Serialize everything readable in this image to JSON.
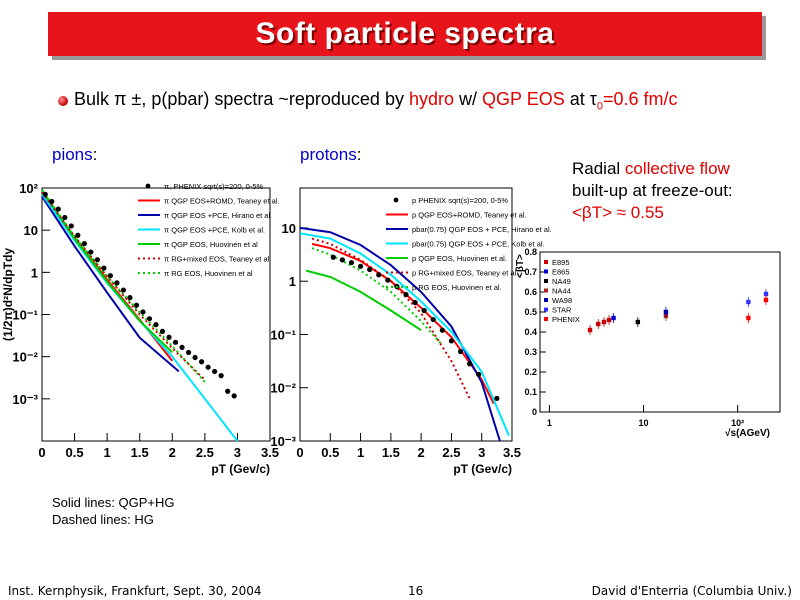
{
  "slide": {
    "title": "Soft particle spectra",
    "headline": {
      "part1": "Bulk π ±, p(pbar) spectra ~reproduced by ",
      "hydro": "hydro",
      "part2": " w/ ",
      "qgp": "QGP EOS",
      "part3": " at τ",
      "sub": "0",
      "part4": "=0.6 fm/c"
    },
    "pions_label": "pions",
    "protons_label": "protons",
    "radial": {
      "line1_a": "Radial ",
      "line1_b": "collective flow",
      "line2": "built-up at freeze-out:",
      "line3": "<βT> ≈  0.55"
    },
    "notes": [
      "Solid lines: QGP+HG",
      "Dashed lines: HG"
    ],
    "footer": {
      "left": "Inst. Kernphysik, Frankfurt, Sept. 30, 2004",
      "page": "16",
      "right": "David d'Enterria (Columbia Univ.)"
    }
  },
  "chart_data": [
    {
      "type": "scatter",
      "panel": "pions",
      "ylabel": "(1/2π)d²N/dpTdy",
      "xlabel": "pT (Gev/c)",
      "x_ticks": [
        "0",
        "0.5",
        "1",
        "1.5",
        "2",
        "2.5",
        "3",
        "3.5"
      ],
      "y_ticks": [
        "10²",
        "10",
        "1",
        "10⁻¹",
        "10⁻²",
        "10⁻³"
      ],
      "xlim": [
        0,
        3.5
      ],
      "ylim_log10": [
        -3,
        3
      ],
      "y_scale": "log",
      "legend": [
        {
          "label": "π, PHENIX sqrt(s)=200, 0-5%",
          "color": "#000000",
          "style": "marker"
        },
        {
          "label": "π QGP EOS+ROMD, Teaney et al.",
          "color": "#ff0000",
          "style": "solid"
        },
        {
          "label": "π QGP EOS +PCE, Hirano et al",
          "color": "#0000aa",
          "style": "solid"
        },
        {
          "label": "π QGP EOS +PCE, Kolb et al.",
          "color": "#00e5ff",
          "style": "solid"
        },
        {
          "label": "π QGP EOS, Huovinen et al",
          "color": "#00cc00",
          "style": "solid"
        },
        {
          "label": "π RG+mixed EOS, Teaney et al",
          "color": "#cc0000",
          "style": "dashed"
        },
        {
          "label": "π RG EOS, Huovinen et al",
          "color": "#00cc00",
          "style": "dashed"
        }
      ],
      "points": {
        "x": [
          0.05,
          0.15,
          0.25,
          0.35,
          0.45,
          0.55,
          0.65,
          0.75,
          0.85,
          0.95,
          1.05,
          1.15,
          1.25,
          1.35,
          1.45,
          1.55,
          1.65,
          1.75,
          1.85,
          1.95,
          2.05,
          2.15,
          2.25,
          2.35,
          2.45,
          2.55,
          2.65,
          2.75,
          2.85,
          2.95
        ],
        "log10_y": [
          2.85,
          2.68,
          2.5,
          2.3,
          2.1,
          1.88,
          1.68,
          1.48,
          1.3,
          1.1,
          0.92,
          0.75,
          0.58,
          0.4,
          0.22,
          0.06,
          -0.1,
          -0.24,
          -0.4,
          -0.54,
          -0.66,
          -0.78,
          -0.9,
          -1.02,
          -1.12,
          -1.25,
          -1.35,
          -1.45,
          -1.82,
          -1.93
        ]
      },
      "curves": [
        {
          "name": "π QGP EOS+ROMD, Teaney et al.",
          "color": "#ff0000",
          "style": "solid",
          "x": [
            0,
            0.5,
            1,
            1.5,
            2
          ],
          "log10_y": [
            2.9,
            1.82,
            0.82,
            -0.12,
            -1.1
          ]
        },
        {
          "name": "π QGP EOS +PCE, Hirano et al",
          "color": "#0000aa",
          "style": "solid",
          "x": [
            0,
            0.5,
            1,
            1.5,
            2.1
          ],
          "log10_y": [
            2.8,
            1.62,
            0.52,
            -0.55,
            -1.35
          ]
        },
        {
          "name": "π QGP EOS +PCE, Kolb et al.",
          "color": "#00e5ff",
          "style": "solid",
          "x": [
            0,
            0.5,
            1,
            1.5,
            2,
            2.5,
            3
          ],
          "log10_y": [
            2.85,
            1.75,
            0.75,
            -0.15,
            -1.0,
            -2.0,
            -3.0
          ]
        },
        {
          "name": "π QGP EOS, Huovinen et al",
          "color": "#00cc00",
          "style": "solid",
          "x": [
            0,
            0.5,
            1,
            1.5,
            2
          ],
          "log10_y": [
            2.95,
            1.8,
            0.78,
            -0.15,
            -0.9
          ]
        },
        {
          "name": "π RG+mixed EOS, Teaney et al",
          "color": "#cc0000",
          "style": "dashed",
          "x": [
            0,
            0.5,
            1,
            1.5,
            2,
            2.5
          ],
          "log10_y": [
            2.9,
            1.85,
            0.9,
            0.0,
            -0.8,
            -1.55
          ]
        },
        {
          "name": "π RG EOS, Huovinen et al",
          "color": "#00cc00",
          "style": "dashed",
          "x": [
            0,
            0.5,
            1,
            1.5,
            2,
            2.5
          ],
          "log10_y": [
            2.95,
            1.85,
            0.9,
            0.05,
            -0.75,
            -1.6
          ]
        }
      ]
    },
    {
      "type": "scatter",
      "panel": "protons",
      "xlabel": "pT (Gev/c)",
      "x_ticks": [
        "0",
        "0.5",
        "1",
        "1.5",
        "2",
        "2.5",
        "3",
        "3.5"
      ],
      "y_ticks": [
        "10",
        "1",
        "10⁻¹",
        "10⁻²",
        "10⁻³"
      ],
      "xlim": [
        0,
        3.5
      ],
      "ylim_log10": [
        -3,
        1.75
      ],
      "y_scale": "log",
      "legend": [
        {
          "label": "p PHENIX sqrt(s)=200, 0-5%",
          "color": "#000000",
          "style": "marker"
        },
        {
          "label": "p QGP EOS+ROMD, Teaney et al.",
          "color": "#ff0000",
          "style": "solid"
        },
        {
          "label": "pbar(0.75) QGP EOS + PCE, Hirano et al.",
          "color": "#0000aa",
          "style": "solid"
        },
        {
          "label": "pbar(0.75) QGP EOS + PCE, Kolb et al.",
          "color": "#00e5ff",
          "style": "solid"
        },
        {
          "label": "p QGP EOS, Huovinen et al.",
          "color": "#00cc00",
          "style": "solid"
        },
        {
          "label": "p RG+mixed EOS, Teaney et al.",
          "color": "#cc0000",
          "style": "dashed"
        },
        {
          "label": "p RG EOS, Huovinen et al.",
          "color": "#00cc00",
          "style": "dashed"
        }
      ],
      "points": {
        "x": [
          0.55,
          0.7,
          0.85,
          1.0,
          1.15,
          1.3,
          1.45,
          1.6,
          1.75,
          1.9,
          2.05,
          2.2,
          2.35,
          2.5,
          2.65,
          2.8,
          2.95,
          3.25
        ],
        "log10_y": [
          0.45,
          0.4,
          0.35,
          0.28,
          0.22,
          0.12,
          0.02,
          -0.1,
          -0.25,
          -0.4,
          -0.55,
          -0.72,
          -0.92,
          -1.12,
          -1.32,
          -1.55,
          -1.75,
          -2.2
        ]
      },
      "curves": [
        {
          "name": "p QGP EOS+ROMD, Teaney et al.",
          "color": "#ff0000",
          "style": "solid",
          "x": [
            0.2,
            0.5,
            1,
            1.5,
            2,
            2.5,
            3,
            3.2
          ],
          "log10_y": [
            0.7,
            0.62,
            0.38,
            0.0,
            -0.5,
            -1.05,
            -1.85,
            -2.3
          ]
        },
        {
          "name": "pbar(0.75) QGP EOS + PCE, Hirano et al.",
          "color": "#0000aa",
          "style": "solid",
          "x": [
            0,
            0.5,
            1,
            1.5,
            2,
            2.5,
            3,
            3.3
          ],
          "log10_y": [
            1.0,
            0.92,
            0.68,
            0.3,
            -0.2,
            -0.85,
            -1.9,
            -3.0
          ]
        },
        {
          "name": "pbar(0.75) QGP EOS + PCE, Kolb et al.",
          "color": "#00e5ff",
          "style": "solid",
          "x": [
            0,
            0.5,
            1,
            1.5,
            2,
            2.5,
            3,
            3.45
          ],
          "log10_y": [
            0.9,
            0.8,
            0.52,
            0.12,
            -0.38,
            -0.95,
            -1.7,
            -2.9
          ]
        },
        {
          "name": "p QGP EOS, Huovinen et al.",
          "color": "#00cc00",
          "style": "solid",
          "x": [
            0.1,
            0.5,
            1,
            1.5,
            2
          ],
          "log10_y": [
            0.2,
            0.08,
            -0.2,
            -0.55,
            -0.92
          ]
        },
        {
          "name": "p RG+mixed EOS, Teaney et al.",
          "color": "#cc0000",
          "style": "dashed",
          "x": [
            0.2,
            0.5,
            1,
            1.5,
            2,
            2.5,
            2.8
          ],
          "log10_y": [
            0.8,
            0.7,
            0.4,
            0.0,
            -0.6,
            -1.5,
            -2.2
          ]
        },
        {
          "name": "p RG EOS, Huovinen et al.",
          "color": "#00cc00",
          "style": "dashed",
          "x": [
            0.2,
            0.5,
            1,
            1.5,
            2,
            2.35
          ],
          "log10_y": [
            0.62,
            0.5,
            0.2,
            -0.2,
            -0.75,
            -1.2
          ]
        }
      ]
    },
    {
      "type": "scatter",
      "panel": "radial-flow",
      "ylabel": "<βT>",
      "xlabel": "√s(AGeV)",
      "x_scale": "log",
      "y_ticks": [
        "0",
        "0.1",
        "0.2",
        "0.3",
        "0.4",
        "0.5",
        "0.6",
        "0.7",
        "0.8"
      ],
      "x_ticks": [
        "1",
        "10",
        "10²"
      ],
      "ylim": [
        0,
        0.8
      ],
      "xlim_log10": [
        -0.1,
        2.45
      ],
      "legend_entries": [
        "E895",
        "E865",
        "NA49",
        "NA44",
        "WA98",
        "STAR",
        "PHENIX"
      ],
      "series": [
        {
          "name": "E895",
          "color": "#cc0000",
          "x": [
            2.7,
            3.3,
            3.8,
            4.3
          ],
          "y": [
            0.41,
            0.44,
            0.45,
            0.46
          ]
        },
        {
          "name": "E865",
          "color": "#0000cc",
          "x": [
            4.8
          ],
          "y": [
            0.47
          ]
        },
        {
          "name": "NA49",
          "color": "#000000",
          "x": [
            8.7
          ],
          "y": [
            0.45
          ]
        },
        {
          "name": "NA44",
          "color": "#aa2222",
          "x": [
            17.3
          ],
          "y": [
            0.48
          ]
        },
        {
          "name": "WA98",
          "color": "#0000aa",
          "x": [
            17.3
          ],
          "y": [
            0.5
          ]
        },
        {
          "name": "STAR",
          "color": "#3333ff",
          "x": [
            130,
            200
          ],
          "y": [
            0.55,
            0.59
          ]
        },
        {
          "name": "PHENIX",
          "color": "#ff0000",
          "x": [
            130,
            200
          ],
          "y": [
            0.47,
            0.56
          ]
        }
      ]
    }
  ]
}
